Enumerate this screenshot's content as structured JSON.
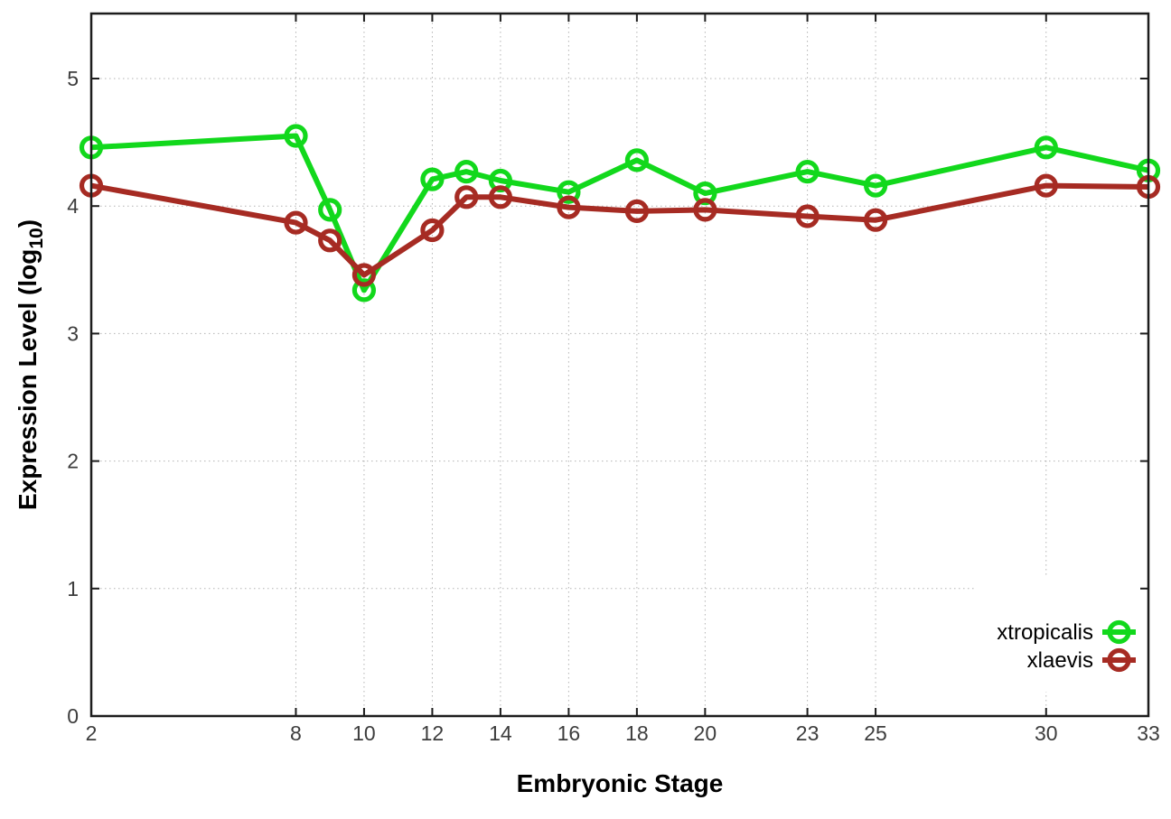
{
  "chart_data": {
    "type": "line",
    "title": "",
    "xlabel": "Embryonic Stage",
    "ylabel": {
      "text": "Expression Level (log10)",
      "prefix": "Expression Level (log",
      "subscript": "10",
      "suffix": ")"
    },
    "xlim": [
      2,
      33
    ],
    "ylim": [
      0,
      5.51
    ],
    "xticks": [
      2,
      8,
      10,
      12,
      14,
      16,
      18,
      20,
      23,
      25,
      30,
      33
    ],
    "yticks": [
      0,
      1,
      2,
      3,
      4,
      5
    ],
    "grid": true,
    "legend_position": "bottom-right",
    "x": [
      2,
      8,
      9,
      10,
      12,
      13,
      14,
      16,
      18,
      20,
      23,
      25,
      30,
      33
    ],
    "series": [
      {
        "name": "xtropicalis",
        "color": "#12d81c",
        "values": [
          4.46,
          4.55,
          3.97,
          3.34,
          4.21,
          4.27,
          4.2,
          4.11,
          4.36,
          4.1,
          4.27,
          4.16,
          4.46,
          4.28
        ]
      },
      {
        "name": "xlaevis",
        "color": "#a62b23",
        "values": [
          4.16,
          3.87,
          3.73,
          3.46,
          3.81,
          4.07,
          4.07,
          3.99,
          3.96,
          3.97,
          3.92,
          3.89,
          4.16,
          4.15
        ]
      }
    ],
    "colors": {
      "axis": "#1c1c1c",
      "grid": "#b3b3b3",
      "tick_label": "#3d3d3d",
      "background": "#ffffff"
    }
  }
}
